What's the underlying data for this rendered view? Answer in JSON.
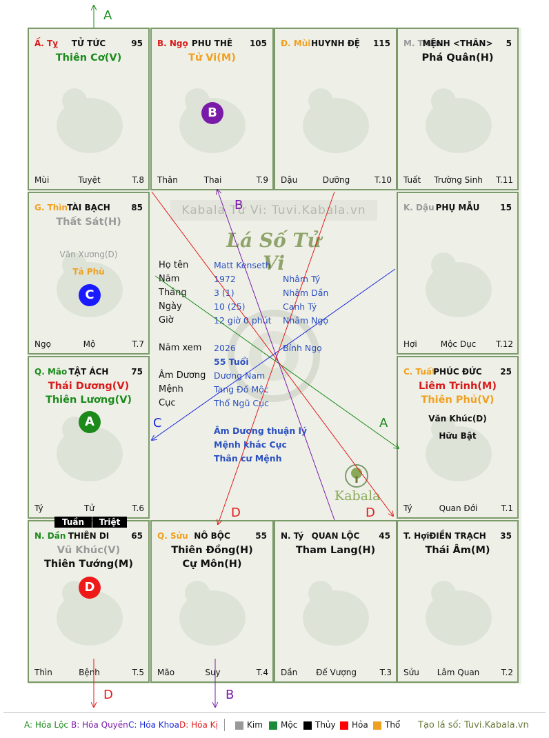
{
  "watermark": "Kabala Tử Vi: Tuvi.Kabala.vn",
  "logo_title": "Lá Số Tử Vi",
  "kabala_brand": "Kabala",
  "cells": [
    {
      "id": "ty-snake",
      "branch": "Ấ. Tỵ",
      "branch_color": "#d81b1b",
      "palace": "TỬ TỨC",
      "num": "95",
      "stars": [
        {
          "t": "Thiên Cơ(V)",
          "c": "#1b8a1b"
        }
      ],
      "minors": [],
      "foot": {
        "l": "Mùi",
        "m": "Tuyệt",
        "r": "T.8"
      }
    },
    {
      "id": "ngo-horse",
      "branch": "B. Ngọ",
      "branch_color": "#d81b1b",
      "palace": "PHU THÊ",
      "num": "105",
      "stars": [
        {
          "t": "Tử Vi(M)",
          "c": "#f0a020"
        }
      ],
      "minors": [],
      "foot": {
        "l": "Thân",
        "m": "Thai",
        "r": "T.9"
      }
    },
    {
      "id": "mui-goat",
      "branch": "Đ. Mùi",
      "branch_color": "#f0a020",
      "palace": "HUYNH ĐỆ",
      "num": "115",
      "stars": [],
      "minors": [],
      "foot": {
        "l": "Dậu",
        "m": "Dưỡng",
        "r": "T.10"
      }
    },
    {
      "id": "than-monkey",
      "branch": "M. Thân",
      "branch_color": "#999999",
      "palace": "MỆNH <THÂN>",
      "num": "5",
      "stars": [
        {
          "t": "Phá Quân(H)",
          "c": "#111111"
        }
      ],
      "minors": [],
      "foot": {
        "l": "Tuất",
        "m": "Trường Sinh",
        "r": "T.11"
      }
    },
    {
      "id": "thin-dragon",
      "branch": "G. Thìn",
      "branch_color": "#f0a020",
      "palace": "TÀI BẠCH",
      "num": "85",
      "stars": [
        {
          "t": "Thất Sát(H)",
          "c": "#999999"
        }
      ],
      "minors": [
        {
          "t": "Văn Xương(D)",
          "c": "#999999"
        },
        {
          "t": "Tả Phù",
          "c": "#f0a020"
        }
      ],
      "foot": {
        "l": "Ngọ",
        "m": "Mộ",
        "r": "T.7"
      }
    },
    {
      "id": "dau-rooster",
      "branch": "K. Dậu",
      "branch_color": "#999999",
      "palace": "PHỤ MẪU",
      "num": "15",
      "stars": [],
      "minors": [],
      "foot": {
        "l": "Hợi",
        "m": "Mộc Dục",
        "r": "T.12"
      }
    },
    {
      "id": "mao-cat",
      "branch": "Q. Mão",
      "branch_color": "#1b8a1b",
      "palace": "TẬT ÁCH",
      "num": "75",
      "stars": [
        {
          "t": "Thái Dương(V)",
          "c": "#d81b1b"
        },
        {
          "t": "Thiên Lương(V)",
          "c": "#1b8a1b"
        }
      ],
      "minors": [],
      "foot": {
        "l": "Tý",
        "m": "Tử",
        "r": "T.6"
      }
    },
    {
      "id": "tuat-dog",
      "branch": "C. Tuất",
      "branch_color": "#f0a020",
      "palace": "PHÚC ĐỨC",
      "num": "25",
      "stars": [
        {
          "t": "Liêm Trinh(M)",
          "c": "#d81b1b"
        },
        {
          "t": "Thiên Phủ(V)",
          "c": "#f0a020"
        }
      ],
      "minors": [
        {
          "t": "Văn Khúc(D)",
          "c": "#111111"
        },
        {
          "t": "Hữu Bật",
          "c": "#111111"
        }
      ],
      "foot": {
        "l": "Tý",
        "m": "Quan Đới",
        "r": "T.1"
      }
    },
    {
      "id": "dan-tiger",
      "branch": "N. Dần",
      "branch_color": "#1b8a1b",
      "palace": "THIÊN DI",
      "num": "65",
      "stars": [
        {
          "t": "Vũ Khúc(V)",
          "c": "#999999"
        },
        {
          "t": "Thiên Tướng(M)",
          "c": "#111111"
        }
      ],
      "minors": [],
      "foot": {
        "l": "Thìn",
        "m": "Bệnh",
        "r": "T.5"
      }
    },
    {
      "id": "suu-buffalo",
      "branch": "Q. Sửu",
      "branch_color": "#f0a020",
      "palace": "NÔ BỘC",
      "num": "55",
      "stars": [
        {
          "t": "Thiên Đồng(H)",
          "c": "#111111"
        },
        {
          "t": "Cự Môn(H)",
          "c": "#111111"
        }
      ],
      "minors": [],
      "foot": {
        "l": "Mão",
        "m": "Suy",
        "r": "T.4"
      }
    },
    {
      "id": "ty-rat",
      "branch": "N. Tý",
      "branch_color": "#111111",
      "palace": "QUAN LỘC",
      "num": "45",
      "stars": [
        {
          "t": "Tham Lang(H)",
          "c": "#111111"
        }
      ],
      "minors": [],
      "foot": {
        "l": "Dần",
        "m": "Đế Vượng",
        "r": "T.3"
      }
    },
    {
      "id": "hoi-pig",
      "branch": "T. Hợi",
      "branch_color": "#111111",
      "palace": "ĐIỀN TRẠCH",
      "num": "35",
      "stars": [
        {
          "t": "Thái Âm(M)",
          "c": "#111111"
        }
      ],
      "minors": [],
      "foot": {
        "l": "Sửu",
        "m": "Lâm Quan",
        "r": "T.2"
      }
    }
  ],
  "tuan": "Tuần",
  "triet": "Triệt",
  "badges": {
    "A": "A",
    "B": "B",
    "C": "C",
    "D": "D"
  },
  "arrow_labels": {
    "A": "A",
    "B": "B",
    "C": "C",
    "D": "D"
  },
  "info": {
    "ho_ten_label": "Họ tên",
    "ho_ten": "Matt Kenseth",
    "nam_label": "Năm",
    "nam": "1972",
    "nam_can": "Nhâm Tý",
    "thang_label": "Tháng",
    "thang": "3 (1)",
    "thang_can": "Nhâm Dần",
    "ngay_label": "Ngày",
    "ngay": "10 (25)",
    "ngay_can": "Canh Tý",
    "gio_label": "Giờ",
    "gio": "12 giờ 0 phút",
    "gio_can": "Nhâm Ngọ",
    "namxem_label": "Năm xem",
    "namxem": "2026",
    "namxem_can": "Bính Ngọ",
    "tuoi": "55 Tuổi",
    "amduong_label": "Âm Dương",
    "amduong": "Dương Nam",
    "menh_label": "Mệnh",
    "menh": "Tang Đố Mộc",
    "cuc_label": "Cục",
    "cuc": "Thổ Ngũ Cục",
    "note1": "Âm Dương thuận lý",
    "note2": "Mệnh khắc Cục",
    "note3": "Thân cư Mệnh"
  },
  "legend": {
    "a": "A: Hóa Lộc",
    "b": "B: Hóa Quyền",
    "c": "C: Hóa Khoa",
    "d": "D: Hóa Kị",
    "kim": "Kim",
    "moc": "Mộc",
    "thuy": "Thủy",
    "hoa": "Hỏa",
    "tho": "Thổ",
    "site": "Tạo lá số: Tuvi.Kabala.vn",
    "colors": {
      "kim": "#999999",
      "moc": "#1b8a3a",
      "thuy": "#000000",
      "hoa": "#ff0000",
      "tho": "#f0a020"
    }
  }
}
